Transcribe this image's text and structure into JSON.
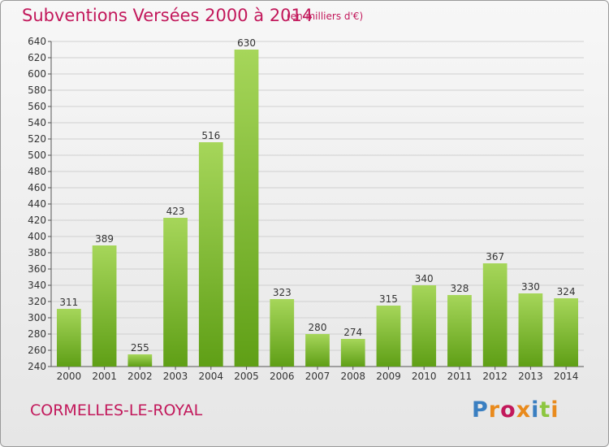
{
  "header": {
    "title": "Subventions Versées 2000 à 2014",
    "unit": "(en milliers d'€)"
  },
  "footer": {
    "town": "CORMELLES-LE-ROYAL",
    "logo": "Proxiti",
    "logo_colors": [
      "#3a7fc1",
      "#e98a1c",
      "#c2185b",
      "#e98a1c",
      "#3a7fc1",
      "#8cc63f",
      "#e98a1c"
    ]
  },
  "colors": {
    "bar_top": "#a6d65a",
    "bar_bottom": "#5f9f16",
    "accent": "#c2185b",
    "grid": "#d0d0d0"
  },
  "chart_data": {
    "type": "bar",
    "title": "Subventions Versées 2000 à 2014",
    "subtitle": "(en milliers d'€)",
    "xlabel": "",
    "ylabel": "",
    "categories": [
      "2000",
      "2001",
      "2002",
      "2003",
      "2004",
      "2005",
      "2006",
      "2007",
      "2008",
      "2009",
      "2010",
      "2011",
      "2012",
      "2013",
      "2014"
    ],
    "values": [
      311,
      389,
      255,
      423,
      516,
      630,
      323,
      280,
      274,
      315,
      340,
      328,
      367,
      330,
      324
    ],
    "ylim": [
      240,
      640
    ],
    "yticks": [
      240,
      260,
      280,
      300,
      320,
      340,
      360,
      380,
      400,
      420,
      440,
      460,
      480,
      500,
      520,
      540,
      560,
      580,
      600,
      620,
      640
    ],
    "grid": true,
    "data_labels": true
  }
}
